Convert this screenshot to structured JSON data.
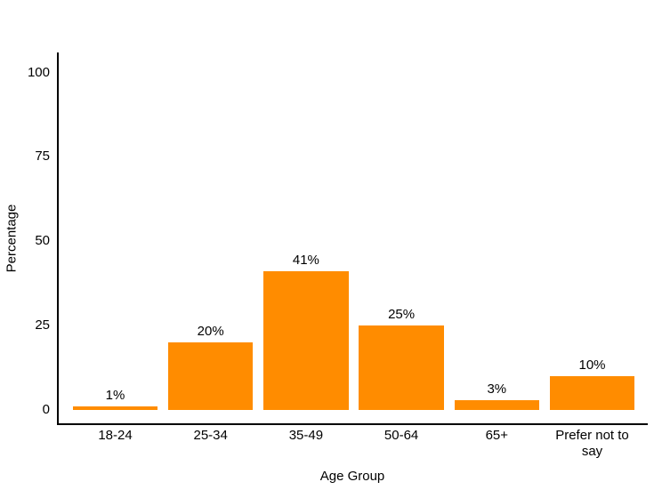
{
  "chart_data": {
    "type": "bar",
    "title": "",
    "xlabel": "Age Group",
    "ylabel": "Percentage",
    "categories": [
      "18-24",
      "25-34",
      "35-49",
      "50-64",
      "65+",
      "Prefer not to say"
    ],
    "values": [
      1,
      20,
      41,
      25,
      3,
      10
    ],
    "bar_labels": [
      "1%",
      "20%",
      "41%",
      "25%",
      "3%",
      "10%"
    ],
    "y_ticks": [
      0,
      25,
      50,
      75,
      100
    ],
    "ylim": [
      -4,
      105
    ],
    "bar_color": "#FF8C00",
    "axis_color": "#000000",
    "text_color": "#000000",
    "background": "#FFFFFF",
    "grid": false,
    "legend": "none"
  }
}
